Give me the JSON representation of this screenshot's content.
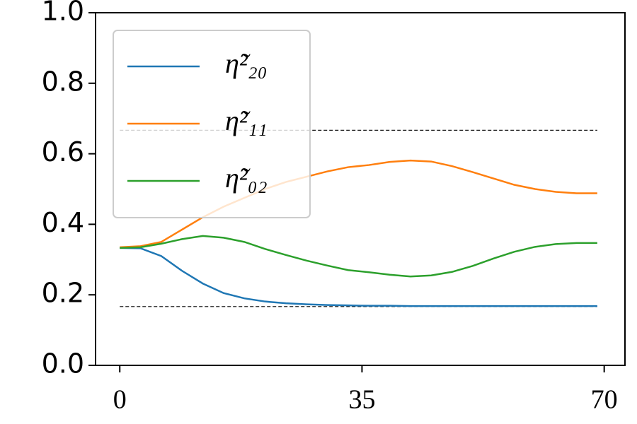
{
  "chart_data": {
    "type": "line",
    "x": [
      0,
      3,
      6,
      9,
      12,
      15,
      18,
      21,
      24,
      27,
      30,
      33,
      36,
      39,
      42,
      45,
      48,
      51,
      54,
      57,
      60,
      63,
      66,
      69
    ],
    "series": [
      {
        "name": "η̃²₂₀",
        "color": "#1f77b4",
        "values": [
          0.333,
          0.332,
          0.31,
          0.268,
          0.232,
          0.205,
          0.19,
          0.181,
          0.176,
          0.173,
          0.171,
          0.17,
          0.169,
          0.169,
          0.168,
          0.168,
          0.168,
          0.168,
          0.168,
          0.168,
          0.168,
          0.168,
          0.168,
          0.168
        ]
      },
      {
        "name": "η̃²₁₁",
        "color": "#ff7f0e",
        "values": [
          0.335,
          0.338,
          0.35,
          0.385,
          0.42,
          0.45,
          0.475,
          0.5,
          0.52,
          0.535,
          0.55,
          0.562,
          0.568,
          0.577,
          0.581,
          0.578,
          0.565,
          0.548,
          0.53,
          0.512,
          0.5,
          0.492,
          0.488,
          0.488
        ]
      },
      {
        "name": "η̃²₀₂",
        "color": "#2ca02c",
        "values": [
          0.333,
          0.335,
          0.345,
          0.358,
          0.367,
          0.362,
          0.35,
          0.33,
          0.313,
          0.297,
          0.283,
          0.27,
          0.264,
          0.257,
          0.252,
          0.255,
          0.265,
          0.282,
          0.303,
          0.322,
          0.336,
          0.344,
          0.347,
          0.347
        ]
      }
    ],
    "reference_lines": [
      0.6667,
      0.1667
    ],
    "xlim": [
      -3.5,
      73
    ],
    "ylim": [
      0,
      1
    ],
    "xticks": [
      0,
      35,
      70
    ],
    "yticks": [
      {
        "value": 0,
        "label": "0.0"
      },
      {
        "value": 0.2,
        "label": "0.2"
      },
      {
        "value": 0.4,
        "label": "0.4"
      },
      {
        "value": 0.6,
        "label": "0.6"
      },
      {
        "value": 0.8,
        "label": "0.8"
      },
      {
        "value": 1,
        "label": "1.0"
      }
    ],
    "legend": "upper left"
  }
}
